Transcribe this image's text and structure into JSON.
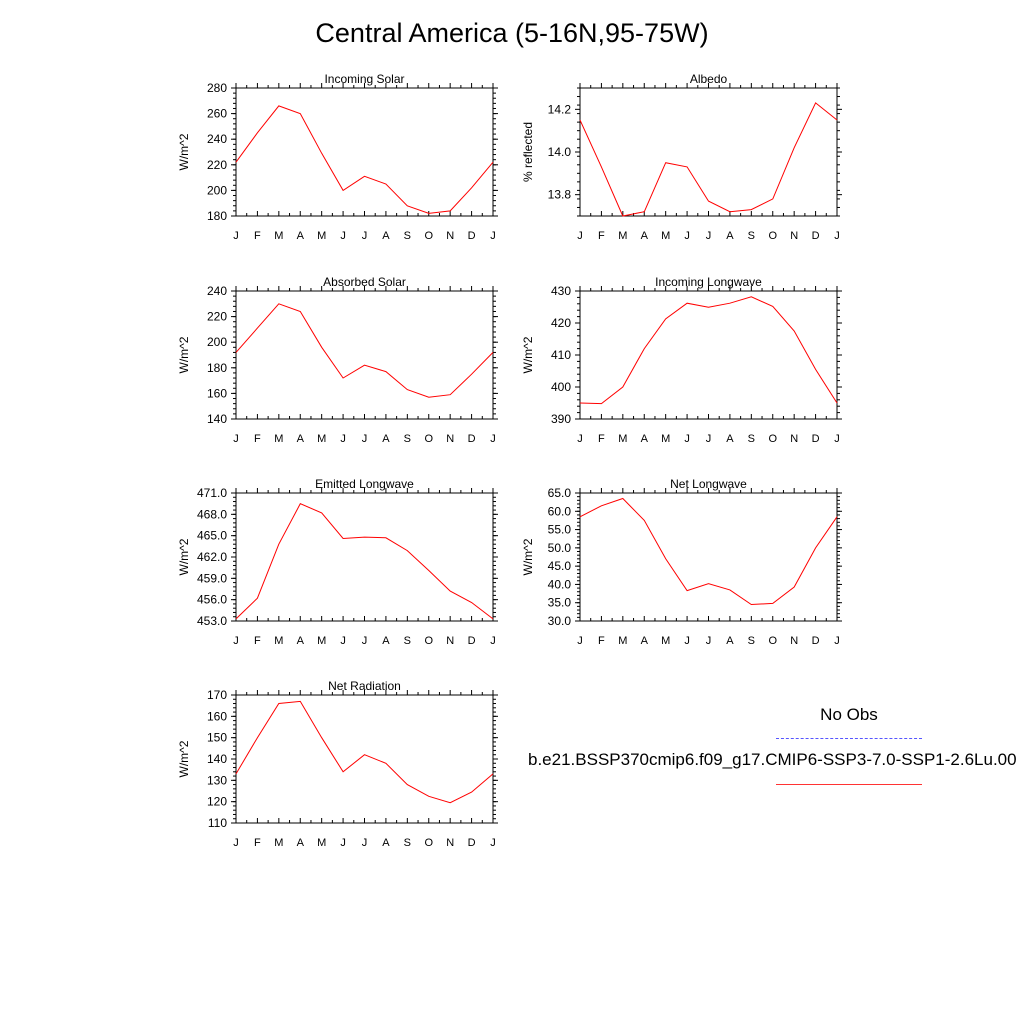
{
  "title": "Central America (5-16N,95-75W)",
  "months": [
    "J",
    "F",
    "M",
    "A",
    "M",
    "J",
    "J",
    "A",
    "S",
    "O",
    "N",
    "D",
    "J"
  ],
  "legend": {
    "obs_label": "No Obs",
    "case_label": "b.e21.BSSP370cmip6.f09_g17.CMIP6-SSP3-7.0-SSP1-2.6Lu.00",
    "obs_color": "#5555ff",
    "model_color": "#ff0000"
  },
  "chart_data": [
    {
      "type": "line",
      "title": "Incoming Solar",
      "ylabel": "W/m^2",
      "ylim": [
        180,
        280
      ],
      "yticks": [
        "180",
        "200",
        "220",
        "240",
        "260",
        "280"
      ],
      "values": [
        222,
        245,
        266,
        260,
        229,
        200,
        211,
        205,
        188,
        182,
        184,
        202,
        222
      ]
    },
    {
      "type": "line",
      "title": "Albedo",
      "ylabel": "% reflected",
      "ylim": [
        13.7,
        14.3
      ],
      "yticks": [
        "13.8",
        "14.0",
        "14.2"
      ],
      "values": [
        14.15,
        13.93,
        13.7,
        13.72,
        13.95,
        13.93,
        13.77,
        13.72,
        13.73,
        13.78,
        14.02,
        14.23,
        14.15
      ]
    },
    {
      "type": "line",
      "title": "Absorbed Solar",
      "ylabel": "W/m^2",
      "ylim": [
        140,
        240
      ],
      "yticks": [
        "140",
        "160",
        "180",
        "200",
        "220",
        "240"
      ],
      "values": [
        192,
        211,
        230,
        224,
        196,
        172,
        182,
        177,
        163,
        157,
        159,
        175,
        192
      ]
    },
    {
      "type": "line",
      "title": "Incoming Longwave",
      "ylabel": "W/m^2",
      "ylim": [
        390,
        430
      ],
      "yticks": [
        "390",
        "400",
        "410",
        "420",
        "430"
      ],
      "values": [
        395,
        394.8,
        400,
        412,
        421.3,
        426.2,
        424.9,
        426.2,
        428.2,
        425.2,
        417.5,
        405.5,
        395
      ]
    },
    {
      "type": "line",
      "title": "Emitted Longwave",
      "ylabel": "W/m^2",
      "ylim": [
        453,
        471
      ],
      "yticks": [
        "453.0",
        "456.0",
        "459.0",
        "462.0",
        "465.0",
        "468.0",
        "471.0"
      ],
      "values": [
        453.3,
        456.2,
        463.8,
        469.5,
        468.2,
        464.6,
        464.8,
        464.7,
        462.9,
        460.1,
        457.2,
        455.6,
        453.3
      ]
    },
    {
      "type": "line",
      "title": "Net Longwave",
      "ylabel": "W/m^2",
      "ylim": [
        30,
        65
      ],
      "yticks": [
        "30.0",
        "35.0",
        "40.0",
        "45.0",
        "50.0",
        "55.0",
        "60.0",
        "65.0"
      ],
      "values": [
        58.5,
        61.5,
        63.5,
        57.5,
        47,
        38.3,
        40.2,
        38.5,
        34.5,
        34.8,
        39.3,
        50,
        58.5
      ]
    },
    {
      "type": "line",
      "title": "Net Radiation",
      "ylabel": "W/m^2",
      "ylim": [
        110,
        170
      ],
      "yticks": [
        "110",
        "120",
        "130",
        "140",
        "150",
        "160",
        "170"
      ],
      "values": [
        133,
        150,
        166,
        167,
        150,
        134,
        142,
        138,
        128,
        122.5,
        119.5,
        124.5,
        133
      ]
    }
  ]
}
